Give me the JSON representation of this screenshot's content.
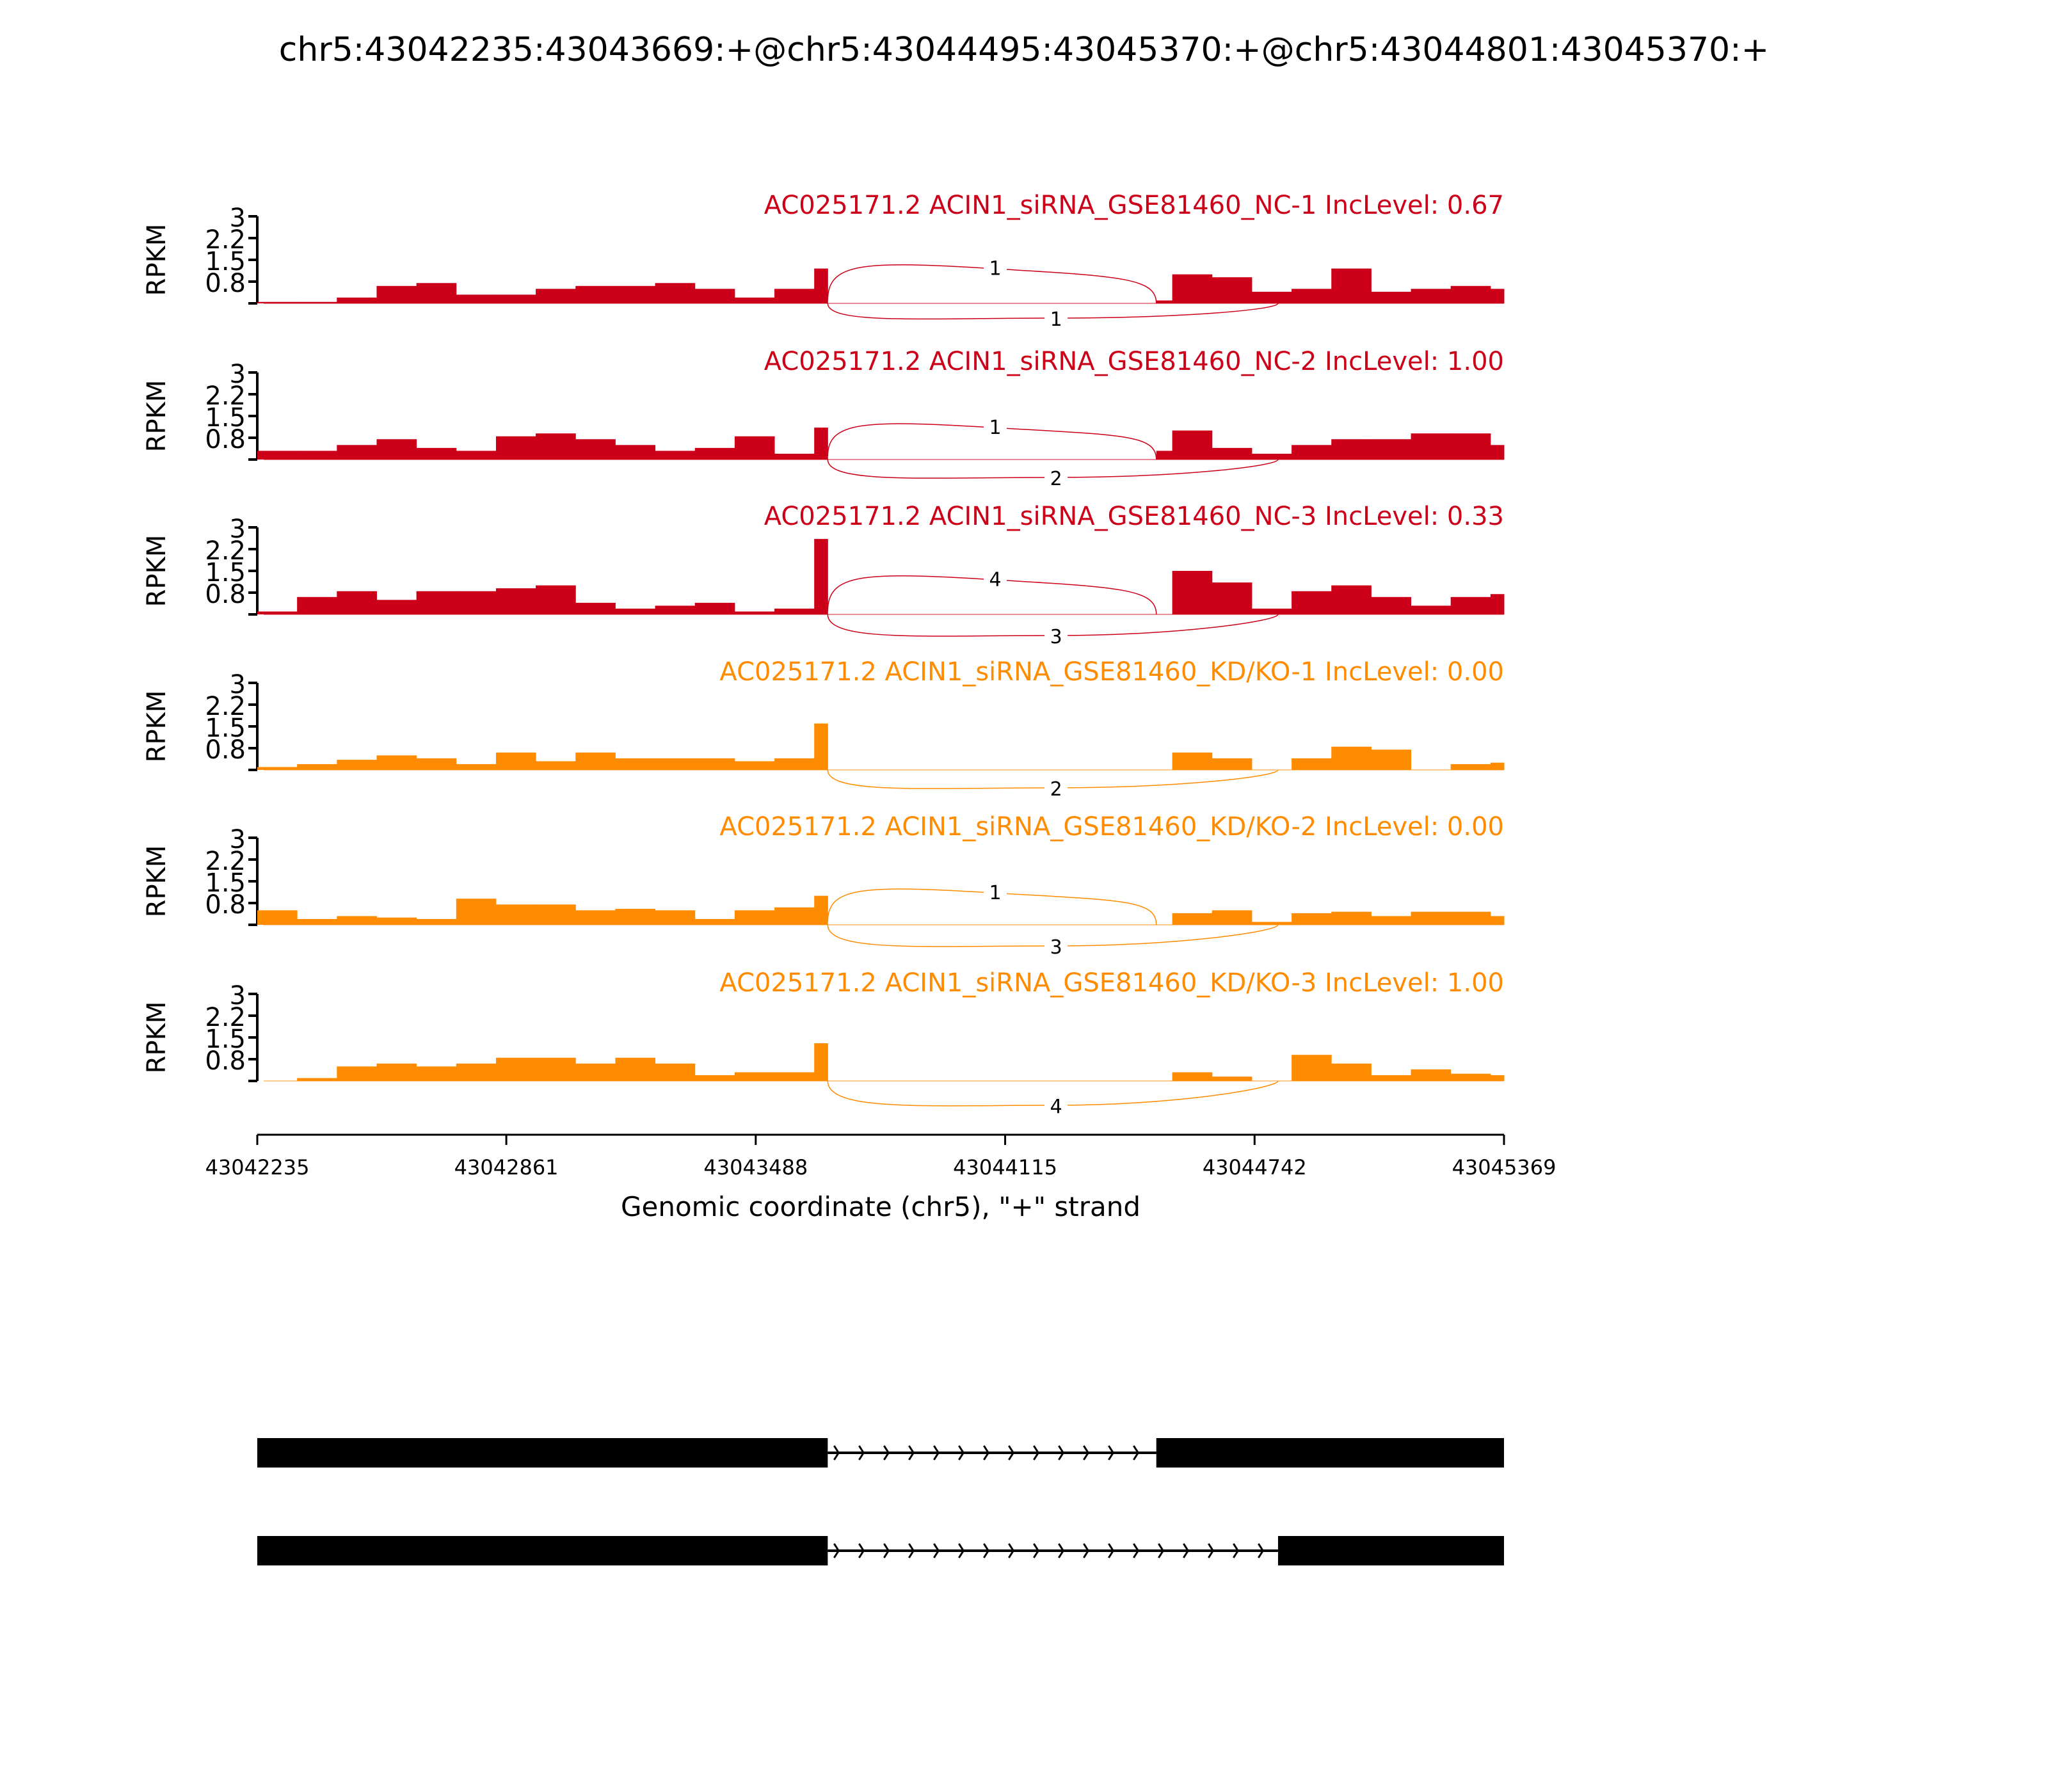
{
  "chart_data": {
    "type": "area",
    "title": "chr5:43042235:43043669:+@chr5:43044495:43045370:+@chr5:43044801:43045370:+",
    "xlabel": "Genomic coordinate (chr5), \"+\" strand",
    "ylabel": "RPKM",
    "xlim": [
      43042235,
      43045369
    ],
    "ylim": [
      0,
      3
    ],
    "xticks": [
      "43042235",
      "43042861",
      "43043488",
      "43044115",
      "43044742",
      "43045369"
    ],
    "yticks": [
      "0.8",
      "1.5",
      "2.2",
      "3"
    ],
    "bin_size_bp": 100,
    "colors": {
      "NC": "#cc0018",
      "KD": "#ff8c00",
      "gene": "#000000"
    },
    "tracks": [
      {
        "group": "NC",
        "label": "AC025171.2 ACIN1_siRNA_GSE81460_NC-1 IncLevel: 0.67",
        "coverage": [
          0.05,
          0.05,
          0.2,
          0.6,
          0.7,
          0.3,
          0.3,
          0.5,
          0.6,
          0.6,
          0.7,
          0.5,
          0.2,
          0.5,
          1.2,
          0,
          0,
          0,
          0,
          0,
          0,
          0,
          0.1,
          1.0,
          0.9,
          0.4,
          0.5,
          1.2,
          0.4,
          0.5,
          0.6,
          0.5
        ],
        "junction_inclusion": "1",
        "junction_skipping": "1"
      },
      {
        "group": "NC",
        "label": "AC025171.2 ACIN1_siRNA_GSE81460_NC-2 IncLevel: 1.00",
        "coverage": [
          0.3,
          0.3,
          0.5,
          0.7,
          0.4,
          0.3,
          0.8,
          0.9,
          0.7,
          0.5,
          0.3,
          0.4,
          0.8,
          0.2,
          1.1,
          0,
          0,
          0,
          0,
          0,
          0,
          0,
          0.3,
          1.0,
          0.4,
          0.2,
          0.5,
          0.7,
          0.7,
          0.9,
          0.9,
          0.5
        ],
        "junction_inclusion": "1",
        "junction_skipping": "2"
      },
      {
        "group": "NC",
        "label": "AC025171.2 ACIN1_siRNA_GSE81460_NC-3 IncLevel: 0.33",
        "coverage": [
          0.1,
          0.6,
          0.8,
          0.5,
          0.8,
          0.8,
          0.9,
          1.0,
          0.4,
          0.2,
          0.3,
          0.4,
          0.1,
          0.2,
          2.6,
          0,
          0,
          0,
          0,
          0,
          0,
          0,
          0,
          1.5,
          1.1,
          0.2,
          0.8,
          1.0,
          0.6,
          0.3,
          0.6,
          0.7
        ],
        "junction_inclusion": "4",
        "junction_skipping": "3"
      },
      {
        "group": "KD",
        "label": "AC025171.2 ACIN1_siRNA_GSE81460_KD/KO-1 IncLevel: 0.00",
        "coverage": [
          0.1,
          0.2,
          0.35,
          0.5,
          0.4,
          0.2,
          0.6,
          0.3,
          0.6,
          0.4,
          0.4,
          0.4,
          0.3,
          0.4,
          1.6,
          0,
          0,
          0,
          0,
          0,
          0,
          0,
          0,
          0.6,
          0.4,
          0,
          0.4,
          0.8,
          0.7,
          0,
          0.2,
          0.25
        ],
        "junction_inclusion": null,
        "junction_skipping": "2"
      },
      {
        "group": "KD",
        "label": "AC025171.2 ACIN1_siRNA_GSE81460_KD/KO-2 IncLevel: 0.00",
        "coverage": [
          0.5,
          0.2,
          0.3,
          0.25,
          0.2,
          0.9,
          0.7,
          0.7,
          0.5,
          0.55,
          0.5,
          0.2,
          0.5,
          0.6,
          1.0,
          0,
          0,
          0,
          0,
          0,
          0,
          0,
          0,
          0.4,
          0.5,
          0.1,
          0.4,
          0.45,
          0.3,
          0.45,
          0.45,
          0.3
        ],
        "junction_inclusion": "1",
        "junction_skipping": "3"
      },
      {
        "group": "KD",
        "label": "AC025171.2 ACIN1_siRNA_GSE81460_KD/KO-3 IncLevel: 1.00",
        "coverage": [
          0,
          0.1,
          0.5,
          0.6,
          0.5,
          0.6,
          0.8,
          0.8,
          0.6,
          0.8,
          0.6,
          0.2,
          0.3,
          0.3,
          1.3,
          0,
          0,
          0,
          0,
          0,
          0,
          0,
          0,
          0.3,
          0.15,
          0,
          0.9,
          0.6,
          0.2,
          0.4,
          0.25,
          0.2
        ],
        "junction_inclusion": null,
        "junction_skipping": "4"
      }
    ],
    "exons": {
      "upstream": [
        43042235,
        43043669
      ],
      "inclusion_exon": [
        43044495,
        43045370
      ],
      "skipping_exon": [
        43044801,
        43045370
      ]
    },
    "isoforms": [
      {
        "name": "inclusion",
        "exons": [
          [
            43042235,
            43043669
          ],
          [
            43044495,
            43045370
          ]
        ]
      },
      {
        "name": "skipping",
        "exons": [
          [
            43042235,
            43043669
          ],
          [
            43044801,
            43045370
          ]
        ]
      }
    ]
  }
}
